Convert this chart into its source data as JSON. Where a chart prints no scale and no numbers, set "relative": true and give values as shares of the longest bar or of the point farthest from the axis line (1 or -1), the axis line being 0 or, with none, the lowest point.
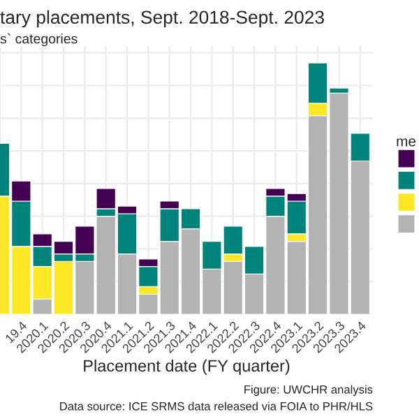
{
  "chart_data": {
    "type": "bar",
    "stacked": true,
    "relative": true,
    "title": "tary placements, Sept. 2018-Sept. 2023",
    "subtitle": "s` categories",
    "xlabel": "Placement date (FY quarter)",
    "legend_title": "me",
    "annotations": [
      "Figure: UWCHR analysis",
      "Data source: ICE SRMS data released via FOIA to PHR/HLS"
    ],
    "categories": [
      null,
      "19.4",
      "2020.1",
      "2020.2",
      "2020.3",
      "2020.4",
      "2021.1",
      "2021.2",
      "2021.3",
      "2021.4",
      "2022.1",
      "2022.2",
      "2022.3",
      "2022.4",
      "2023.1",
      "2023.2",
      "2023.3",
      "2023.4"
    ],
    "series": [
      {
        "color": "#b3b3b3",
        "values": [
          0,
          0,
          0.06,
          0,
          0.21,
          0.39,
          0.24,
          0.08,
          0.29,
          0.34,
          0.18,
          0.21,
          0.16,
          0.39,
          0.29,
          0.79,
          0.88,
          0.61
        ]
      },
      {
        "color": "#fde725",
        "values": [
          0.47,
          0.27,
          0.13,
          0.21,
          0,
          0,
          0,
          0.03,
          0,
          0,
          0,
          0.03,
          0,
          0,
          0.03,
          0.05,
          0,
          0
        ]
      },
      {
        "color": "#00837a",
        "values": [
          0.21,
          0.18,
          0.08,
          0.03,
          0.03,
          0.03,
          0.16,
          0.08,
          0.13,
          0.08,
          0.11,
          0.11,
          0.11,
          0.08,
          0.13,
          0.16,
          0.02,
          0.11
        ]
      },
      {
        "color": "#440154",
        "values": [
          0,
          0.08,
          0.05,
          0.05,
          0.11,
          0.08,
          0.03,
          0.03,
          0.03,
          0,
          0,
          0,
          0,
          0.03,
          0.03,
          0,
          0,
          0
        ]
      }
    ],
    "grid": true
  }
}
